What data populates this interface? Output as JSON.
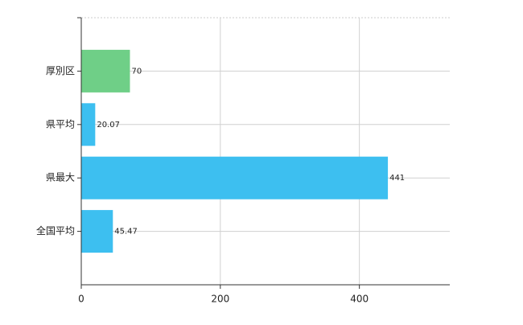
{
  "chart_data": {
    "type": "hbar",
    "categories": [
      "厚別区",
      "県平均",
      "県最大",
      "全国平均"
    ],
    "values": [
      70,
      20.07,
      441,
      45.47
    ],
    "colors": [
      "#6fcf87",
      "#3dbff0",
      "#3dbff0",
      "#3dbff0"
    ],
    "xlim": [
      0,
      530
    ],
    "xticks": [
      0,
      200,
      400
    ],
    "grid": true
  }
}
